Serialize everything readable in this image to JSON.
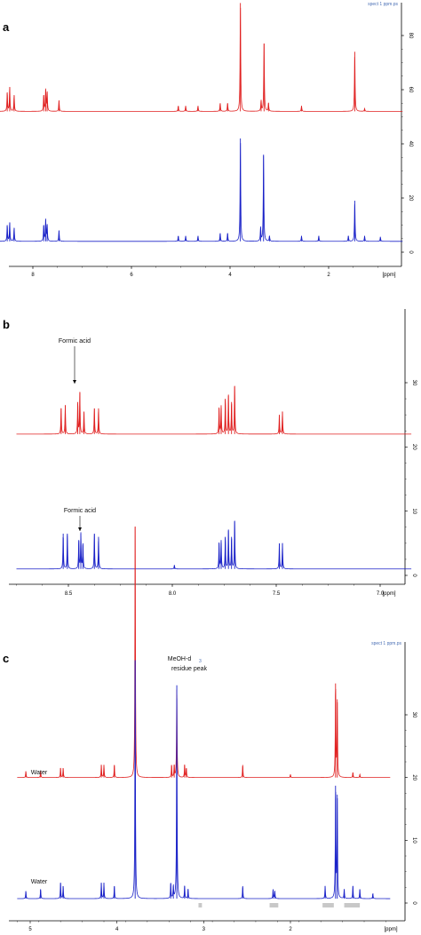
{
  "colors": {
    "red": "#e02020",
    "blue": "#1a22c8",
    "axis": "#000000",
    "band": "#c8c8c8"
  },
  "chart_data": [
    {
      "type": "line",
      "panel_label": "a",
      "title": "",
      "corner_text": "spect 1 ppm.ps",
      "xlabel": "[ppm]",
      "ylabel": "",
      "xlim": [
        9.0,
        0.5
      ],
      "ylim": [
        -4,
        95
      ],
      "x_ticks": [
        "8",
        "6",
        "4",
        "2"
      ],
      "y_ticks": [
        "0",
        "20",
        "40",
        "60",
        "80"
      ],
      "series": [
        {
          "color": "red",
          "baseline": 52,
          "peaks": [
            [
              8.52,
              7
            ],
            [
              8.47,
              9
            ],
            [
              8.38,
              6
            ],
            [
              7.78,
              6
            ],
            [
              7.74,
              8
            ],
            [
              7.71,
              7
            ],
            [
              7.47,
              4
            ],
            [
              5.05,
              2
            ],
            [
              4.9,
              2
            ],
            [
              4.65,
              2
            ],
            [
              4.2,
              3
            ],
            [
              4.05,
              3
            ],
            [
              3.79,
              40
            ],
            [
              3.37,
              4
            ],
            [
              3.31,
              25
            ],
            [
              3.22,
              3
            ],
            [
              2.55,
              2
            ],
            [
              1.47,
              22
            ],
            [
              1.27,
              1
            ]
          ]
        },
        {
          "color": "blue",
          "baseline": 4,
          "peaks": [
            [
              8.52,
              6
            ],
            [
              8.47,
              7
            ],
            [
              8.38,
              5
            ],
            [
              7.78,
              6
            ],
            [
              7.74,
              8
            ],
            [
              7.71,
              6
            ],
            [
              7.47,
              4
            ],
            [
              5.05,
              2
            ],
            [
              4.9,
              2
            ],
            [
              4.65,
              2
            ],
            [
              4.2,
              3
            ],
            [
              4.05,
              3
            ],
            [
              3.79,
              38
            ],
            [
              3.38,
              5
            ],
            [
              3.32,
              32
            ],
            [
              3.2,
              2
            ],
            [
              2.55,
              2
            ],
            [
              2.2,
              2
            ],
            [
              1.6,
              2
            ],
            [
              1.47,
              15
            ],
            [
              1.27,
              2
            ],
            [
              0.95,
              1.5
            ]
          ]
        }
      ]
    },
    {
      "type": "line",
      "panel_label": "b",
      "title": "",
      "xlabel": "[ppm]",
      "ylabel": "",
      "xlim": [
        8.75,
        6.85
      ],
      "ylim": [
        -2,
        40
      ],
      "x_ticks": [
        "8.5",
        "8.0",
        "7.5",
        "7.0"
      ],
      "y_ticks": [
        "0",
        "10",
        "20",
        "30"
      ],
      "annotations": [
        "Formic acid",
        "Formic acid"
      ],
      "series": [
        {
          "color": "red",
          "baseline": 22,
          "peaks": [
            [
              8.535,
              4
            ],
            [
              8.515,
              4.5
            ],
            [
              8.455,
              5
            ],
            [
              8.445,
              6.5
            ],
            [
              8.425,
              3.5
            ],
            [
              8.375,
              4
            ],
            [
              8.355,
              4
            ],
            [
              7.775,
              4
            ],
            [
              7.765,
              4.5
            ],
            [
              7.745,
              5.5
            ],
            [
              7.73,
              6
            ],
            [
              7.715,
              5
            ],
            [
              7.7,
              7.5
            ],
            [
              7.485,
              3
            ],
            [
              7.47,
              3.5
            ]
          ]
        },
        {
          "color": "blue",
          "baseline": 1,
          "peaks": [
            [
              8.525,
              5.5
            ],
            [
              8.505,
              5.5
            ],
            [
              8.45,
              4.5
            ],
            [
              8.44,
              5.5
            ],
            [
              8.43,
              4
            ],
            [
              8.375,
              5.5
            ],
            [
              8.355,
              5
            ],
            [
              7.99,
              0.6
            ],
            [
              7.775,
              4
            ],
            [
              7.765,
              4.5
            ],
            [
              7.745,
              5
            ],
            [
              7.73,
              6
            ],
            [
              7.715,
              5
            ],
            [
              7.7,
              7.5
            ],
            [
              7.485,
              4
            ],
            [
              7.47,
              4
            ]
          ]
        }
      ]
    },
    {
      "type": "line",
      "panel_label": "c",
      "title": "",
      "corner_text": "spect 1 ppm.ps",
      "xlabel": "[ppm]",
      "ylabel": "",
      "xlim": [
        5.15,
        0.85
      ],
      "ylim": [
        -3,
        41
      ],
      "x_ticks": [
        "5",
        "4",
        "3",
        "2"
      ],
      "y_ticks": [
        "0",
        "10",
        "20",
        "30"
      ],
      "annotations": [
        "MeOH-d",
        "3",
        "residue peak",
        "Water",
        "Water"
      ],
      "series": [
        {
          "color": "red",
          "baseline": 20,
          "peaks": [
            [
              5.05,
              1
            ],
            [
              4.88,
              1
            ],
            [
              4.65,
              1.5
            ],
            [
              4.62,
              1.5
            ],
            [
              4.18,
              2
            ],
            [
              4.15,
              2
            ],
            [
              4.03,
              2
            ],
            [
              3.79,
              40
            ],
            [
              3.37,
              2
            ],
            [
              3.34,
              2
            ],
            [
              3.31,
              14
            ],
            [
              3.22,
              2
            ],
            [
              3.2,
              1.5
            ],
            [
              2.55,
              2
            ],
            [
              2.0,
              0.5
            ],
            [
              1.48,
              15
            ],
            [
              1.46,
              12
            ],
            [
              1.28,
              0.8
            ],
            [
              1.2,
              0.5
            ]
          ]
        },
        {
          "color": "blue",
          "baseline": 0.7,
          "peaks": [
            [
              5.05,
              1.2
            ],
            [
              4.88,
              1.5
            ],
            [
              4.65,
              2.5
            ],
            [
              4.62,
              2
            ],
            [
              4.18,
              2.5
            ],
            [
              4.15,
              2.5
            ],
            [
              4.03,
              2
            ],
            [
              3.79,
              38
            ],
            [
              3.38,
              2.5
            ],
            [
              3.35,
              2
            ],
            [
              3.31,
              34
            ],
            [
              3.22,
              2
            ],
            [
              3.18,
              1.5
            ],
            [
              2.55,
              2
            ],
            [
              2.2,
              1.5
            ],
            [
              2.18,
              1.2
            ],
            [
              1.6,
              2
            ],
            [
              1.48,
              18
            ],
            [
              1.46,
              16
            ],
            [
              1.38,
              1.5
            ],
            [
              1.28,
              2
            ],
            [
              1.2,
              1.5
            ],
            [
              1.05,
              0.8
            ]
          ]
        }
      ],
      "bands": [
        [
          3.06,
          3.02
        ],
        [
          2.24,
          2.14
        ],
        [
          1.63,
          1.5
        ],
        [
          1.38,
          1.2
        ]
      ]
    }
  ]
}
